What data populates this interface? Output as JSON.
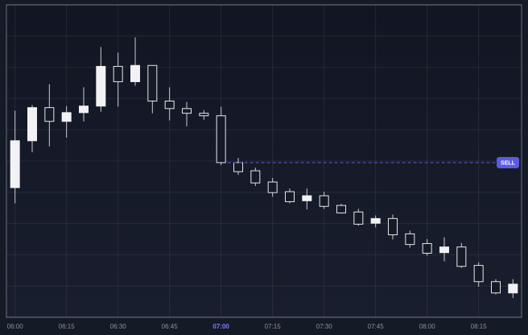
{
  "chart_data": {
    "type": "candlestick",
    "categories": [
      "06:00",
      null,
      null,
      "06:15",
      null,
      null,
      "06:30",
      null,
      null,
      "06:45",
      null,
      null,
      "07:00",
      null,
      null,
      "07:15",
      null,
      null,
      "07:30",
      null,
      null,
      "07:45",
      null,
      null,
      "08:00",
      null,
      null,
      "08:15",
      null,
      null
    ],
    "open": [
      41.5,
      56.5,
      67.1,
      62.7,
      65.5,
      67.6,
      80.3,
      75.4,
      80.6,
      69.2,
      66.8,
      65.3,
      64.5,
      49.5,
      46.9,
      43.3,
      40.2,
      37.3,
      38.9,
      35.8,
      33.7,
      30.1,
      31.6,
      26.7,
      23.6,
      20.7,
      22.5,
      16.6,
      11.4,
      7.8
    ],
    "high": [
      66.1,
      67.9,
      74.6,
      67.6,
      73.6,
      86.5,
      84.7,
      89.6,
      80.6,
      73.6,
      68.9,
      66.3,
      67.4,
      51.0,
      47.9,
      44.6,
      41.2,
      41.2,
      40.2,
      36.3,
      34.7,
      32.6,
      32.9,
      27.7,
      25.0,
      25.6,
      23.8,
      17.6,
      12.2,
      12.2
    ],
    "low": [
      36.5,
      52.8,
      54.7,
      57.5,
      62.7,
      65.8,
      67.4,
      74.1,
      65.3,
      63.0,
      61.1,
      63.2,
      48.7,
      45.6,
      42.0,
      38.6,
      36.5,
      34.5,
      34.7,
      33.2,
      29.3,
      28.8,
      24.9,
      22.3,
      19.7,
      17.9,
      15.8,
      9.8,
      7.3,
      6.2
    ],
    "close": [
      56.5,
      67.1,
      62.7,
      65.5,
      67.6,
      80.3,
      75.4,
      80.6,
      69.2,
      66.8,
      65.3,
      64.5,
      49.5,
      46.6,
      43.0,
      39.9,
      37.0,
      38.9,
      35.5,
      33.4,
      29.8,
      31.6,
      26.4,
      23.3,
      20.5,
      22.5,
      16.3,
      11.4,
      7.8,
      10.6
    ],
    "up_color": "#f2f2f4",
    "down_color": "#e6e6ea",
    "ylim": [
      0,
      100
    ],
    "yticks": [
      0,
      10,
      20,
      30,
      40,
      50,
      60,
      70,
      80,
      90,
      100
    ],
    "grid": true,
    "highlight_index": 12,
    "highlight_color": "#7c7cf2",
    "signal": {
      "label": "SELL",
      "value": 49.5,
      "color": "#5a5ce0"
    }
  }
}
